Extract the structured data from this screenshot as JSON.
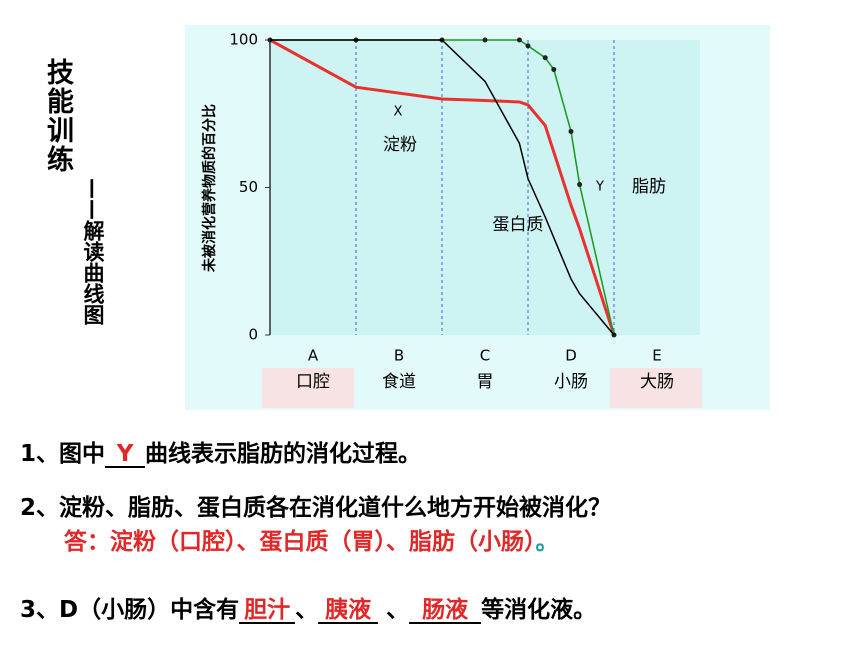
{
  "slide": {
    "title": "技能训练",
    "subtitle": "——解读曲线图"
  },
  "chart_data": {
    "type": "line",
    "ylabel": "未被消化营养物质的百分比",
    "categories": [
      "A",
      "B",
      "C",
      "D",
      "E"
    ],
    "category_names": [
      "口腔",
      "食道",
      "胃",
      "小肠",
      "大肠"
    ],
    "x": [
      0,
      1,
      2,
      2.5,
      2.9,
      3,
      3.2,
      3.3,
      3.5,
      3.6,
      4
    ],
    "xlim": [
      0,
      5
    ],
    "ylim": [
      0,
      100
    ],
    "yticks": [
      0,
      50,
      100
    ],
    "series": [
      {
        "name": "淀粉",
        "letter": "X",
        "color": "#e8322e",
        "values": [
          100,
          84,
          80,
          79.5,
          79,
          78,
          71,
          62,
          44,
          36,
          0
        ]
      },
      {
        "name": "脂肪",
        "letter": "Y",
        "color": "#1a9a1a",
        "markers": true,
        "values": [
          100,
          100,
          100,
          100,
          100,
          98,
          94,
          90,
          69,
          51,
          0
        ]
      },
      {
        "name": "蛋白质",
        "color": "#000000",
        "values": [
          100,
          100,
          100,
          86,
          65,
          53,
          40,
          33,
          19,
          14,
          0
        ]
      }
    ]
  },
  "questions": [
    {
      "prefix": "1、图中",
      "answer": "Y",
      "suffix": "曲线表示脂肪的消化过程。"
    },
    {
      "prefix": "2、淀粉、脂肪、蛋白质各在消化道什么地方开始被消化？",
      "answer": "答：淀粉（口腔）、蛋白质（胃）、脂肪（小肠）",
      "suffix": "。"
    },
    {
      "prefix": "3、D（小肠）中含有",
      "answers": [
        "胆汁",
        "胰液",
        "肠液"
      ],
      "separators": [
        "、",
        " 、"
      ],
      "suffix": "等消化液。"
    }
  ]
}
